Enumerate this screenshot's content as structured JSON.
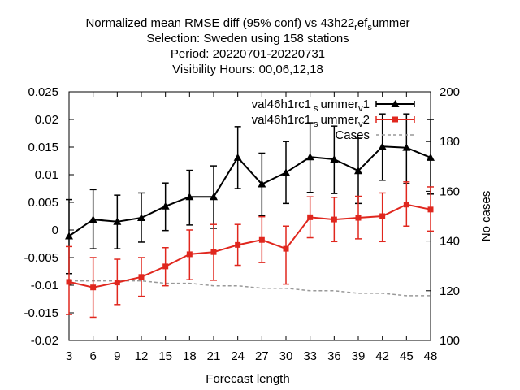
{
  "chart_data": {
    "type": "line",
    "title_lines": [
      "Normalized mean RMSE diff (95% conf) vs 43h22_ref_summer",
      "Selection: Sweden using   158 stations",
      "Period: 20220701-20220731",
      "Visibility   Hours: 00,06,12,18"
    ],
    "xlabel": "Forecast length",
    "ylabel": "",
    "y2label": "No cases",
    "x": [
      3,
      6,
      9,
      12,
      15,
      18,
      21,
      24,
      27,
      30,
      33,
      36,
      39,
      42,
      45,
      48
    ],
    "xlim": [
      3,
      48
    ],
    "ylim": [
      -0.02,
      0.025
    ],
    "y2lim": [
      100,
      200
    ],
    "yticks": [
      "0.025",
      "0.02",
      "0.015",
      "0.01",
      "0.005",
      "0",
      "-0.005",
      "-0.01",
      "-0.015",
      "-0.02"
    ],
    "y2ticks": [
      "200",
      "180",
      "160",
      "140",
      "120",
      "100"
    ],
    "grid": false,
    "legend_position": "top-right",
    "series": [
      {
        "name": "val46h1rc1_summer_v1",
        "color": "#000000",
        "marker": "triangle",
        "values": [
          -0.0011,
          0.0019,
          0.0015,
          0.0022,
          0.0043,
          0.006,
          0.006,
          0.0131,
          0.0083,
          0.0104,
          0.0132,
          0.0128,
          0.0107,
          0.0151,
          0.0149,
          0.0131
        ],
        "lower": [
          -0.0079,
          -0.0034,
          -0.0034,
          -0.0022,
          -0.0001,
          0.0009,
          0.0003,
          0.0075,
          0.0026,
          0.0048,
          0.0068,
          0.0066,
          0.0048,
          0.009,
          0.0084,
          0.0065
        ],
        "upper": [
          0.0055,
          0.0073,
          0.0063,
          0.0067,
          0.0085,
          0.0108,
          0.0116,
          0.0187,
          0.0139,
          0.016,
          0.0194,
          0.0188,
          0.0166,
          0.021,
          0.021,
          0.02
        ]
      },
      {
        "name": "val46h1rc1_summer_v2",
        "color": "#e0271e",
        "marker": "square",
        "values": [
          -0.0094,
          -0.0104,
          -0.0095,
          -0.0085,
          -0.0066,
          -0.0044,
          -0.004,
          -0.0027,
          -0.0018,
          -0.0034,
          0.0023,
          0.0019,
          0.0022,
          0.0025,
          0.0046,
          0.0037
        ],
        "lower": [
          -0.0153,
          -0.0158,
          -0.0135,
          -0.012,
          -0.0101,
          -0.009,
          -0.0091,
          -0.0064,
          -0.0059,
          -0.0098,
          -0.0014,
          -0.0021,
          -0.0016,
          -0.0021,
          0.0007,
          -0.0002
        ],
        "upper": [
          -0.003,
          -0.005,
          -0.0053,
          -0.005,
          -0.0032,
          0.0,
          0.001,
          0.001,
          0.0024,
          0.0007,
          0.006,
          0.0059,
          0.0061,
          0.0067,
          0.0087,
          0.0078
        ]
      },
      {
        "name": "Cases",
        "color": "#999999",
        "style": "dashed",
        "axis": "y2",
        "values": [
          124,
          124,
          124,
          124,
          123,
          123,
          122,
          122,
          121,
          121,
          120,
          120,
          119,
          119,
          118,
          118
        ]
      }
    ]
  },
  "legend_labels": {
    "v1_base": "val46h1rc1",
    "v1_sub1": "s",
    "v1_mid": "ummer",
    "v1_sub2": "v",
    "v1_end": "1",
    "v2_base": "val46h1rc1",
    "v2_sub1": "s",
    "v2_mid": "ummer",
    "v2_sub2": "v",
    "v2_end": "2",
    "cases": "Cases"
  },
  "title_render": {
    "line1_a": "Normalized mean RMSE diff (95% conf) vs 43h22",
    "line1_sub1": "r",
    "line1_b": "ef",
    "line1_sub2": "s",
    "line1_c": "ummer"
  }
}
